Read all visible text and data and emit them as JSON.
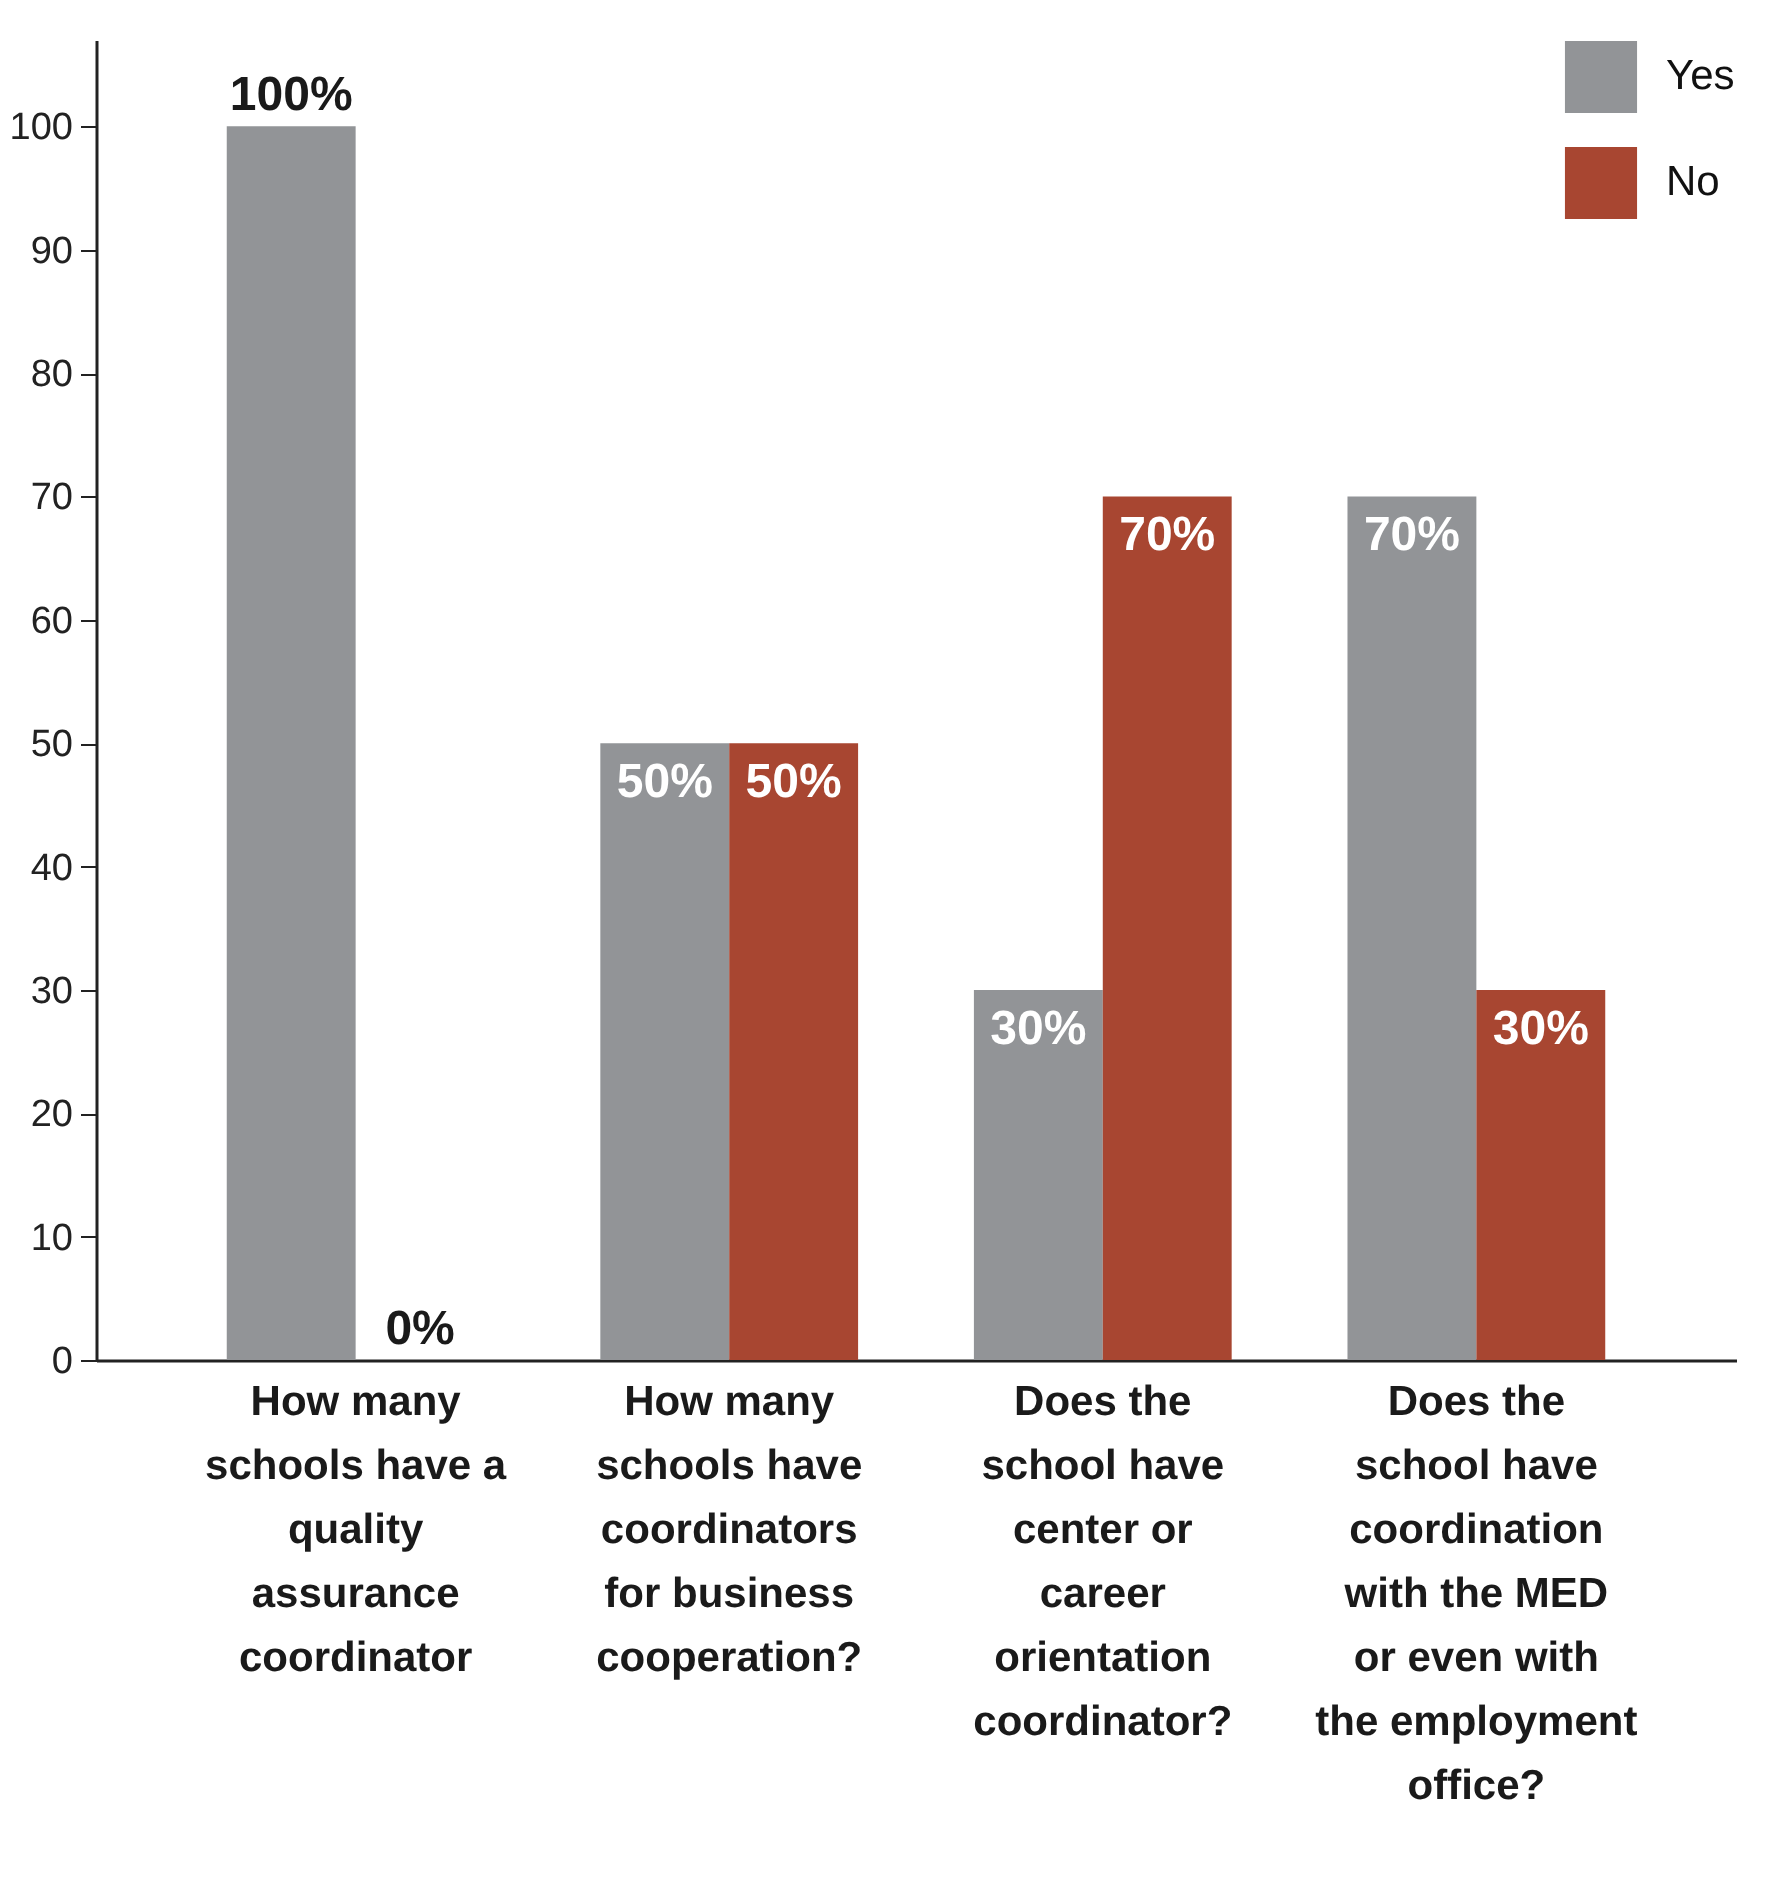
{
  "chart_data": {
    "type": "bar",
    "categories": [
      "How many schools have a quality assurance coordinator",
      "How many schools have coordinators for business cooperation?",
      "Does the school have center or career orientation coordinator?",
      "Does the school have coordination with the MED or even with the employment office?"
    ],
    "series": [
      {
        "name": "Yes",
        "color": "#929497",
        "values": [
          100,
          50,
          30,
          70
        ]
      },
      {
        "name": "No",
        "color": "#a84631",
        "values": [
          0,
          50,
          70,
          30
        ]
      }
    ],
    "value_labels": [
      [
        "100%",
        "50%",
        "30%",
        "70%"
      ],
      [
        "0%",
        "50%",
        "70%",
        "30%"
      ]
    ],
    "ylim": [
      0,
      107
    ],
    "yticks": [
      0,
      10,
      20,
      30,
      40,
      50,
      60,
      70,
      80,
      90,
      100
    ],
    "grid": false,
    "legend": "top right"
  }
}
